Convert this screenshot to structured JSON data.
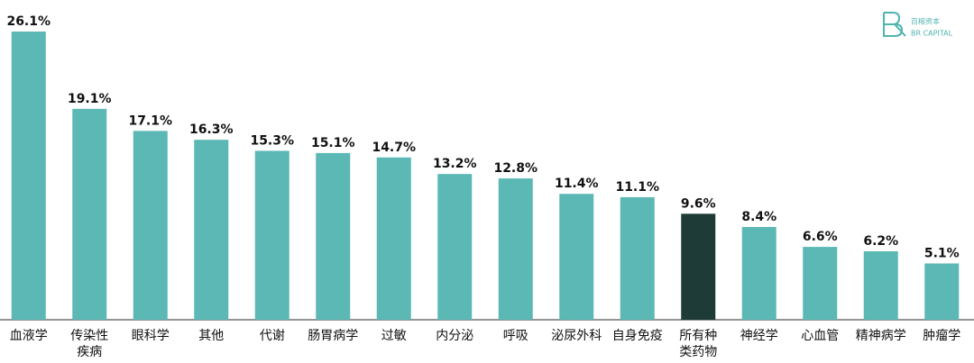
{
  "chart_data": {
    "type": "bar",
    "brand": {
      "name": "百榕资本",
      "name_en": "BR CAPITAL"
    },
    "categories": [
      "血液学",
      "传染性疾病",
      "眼科学",
      "其他",
      "代谢",
      "肠胃病学",
      "过敏",
      "内分泌",
      "呼吸",
      "泌尿外科",
      "自身免疫",
      "所有种类药物",
      "神经学",
      "心血管",
      "精神病学",
      "肿瘤学"
    ],
    "values": [
      26.1,
      19.1,
      17.1,
      16.3,
      15.3,
      15.1,
      14.7,
      13.2,
      12.8,
      11.4,
      11.1,
      9.6,
      8.4,
      6.6,
      6.2,
      5.1
    ],
    "value_labels": [
      "26.1%",
      "19.1%",
      "17.1%",
      "16.3%",
      "15.3%",
      "15.1%",
      "14.7%",
      "13.2%",
      "12.8%",
      "11.4%",
      "11.1%",
      "9.6%",
      "8.4%",
      "6.6%",
      "6.2%",
      "5.1%"
    ],
    "colors": [
      "#5bb8b4",
      "#5bb8b4",
      "#5bb8b4",
      "#5bb8b4",
      "#5bb8b4",
      "#5bb8b4",
      "#5bb8b4",
      "#5bb8b4",
      "#5bb8b4",
      "#5bb8b4",
      "#5bb8b4",
      "#1e3b38",
      "#5bb8b4",
      "#5bb8b4",
      "#5bb8b4",
      "#5bb8b4"
    ],
    "ylim": [
      0,
      27
    ]
  }
}
